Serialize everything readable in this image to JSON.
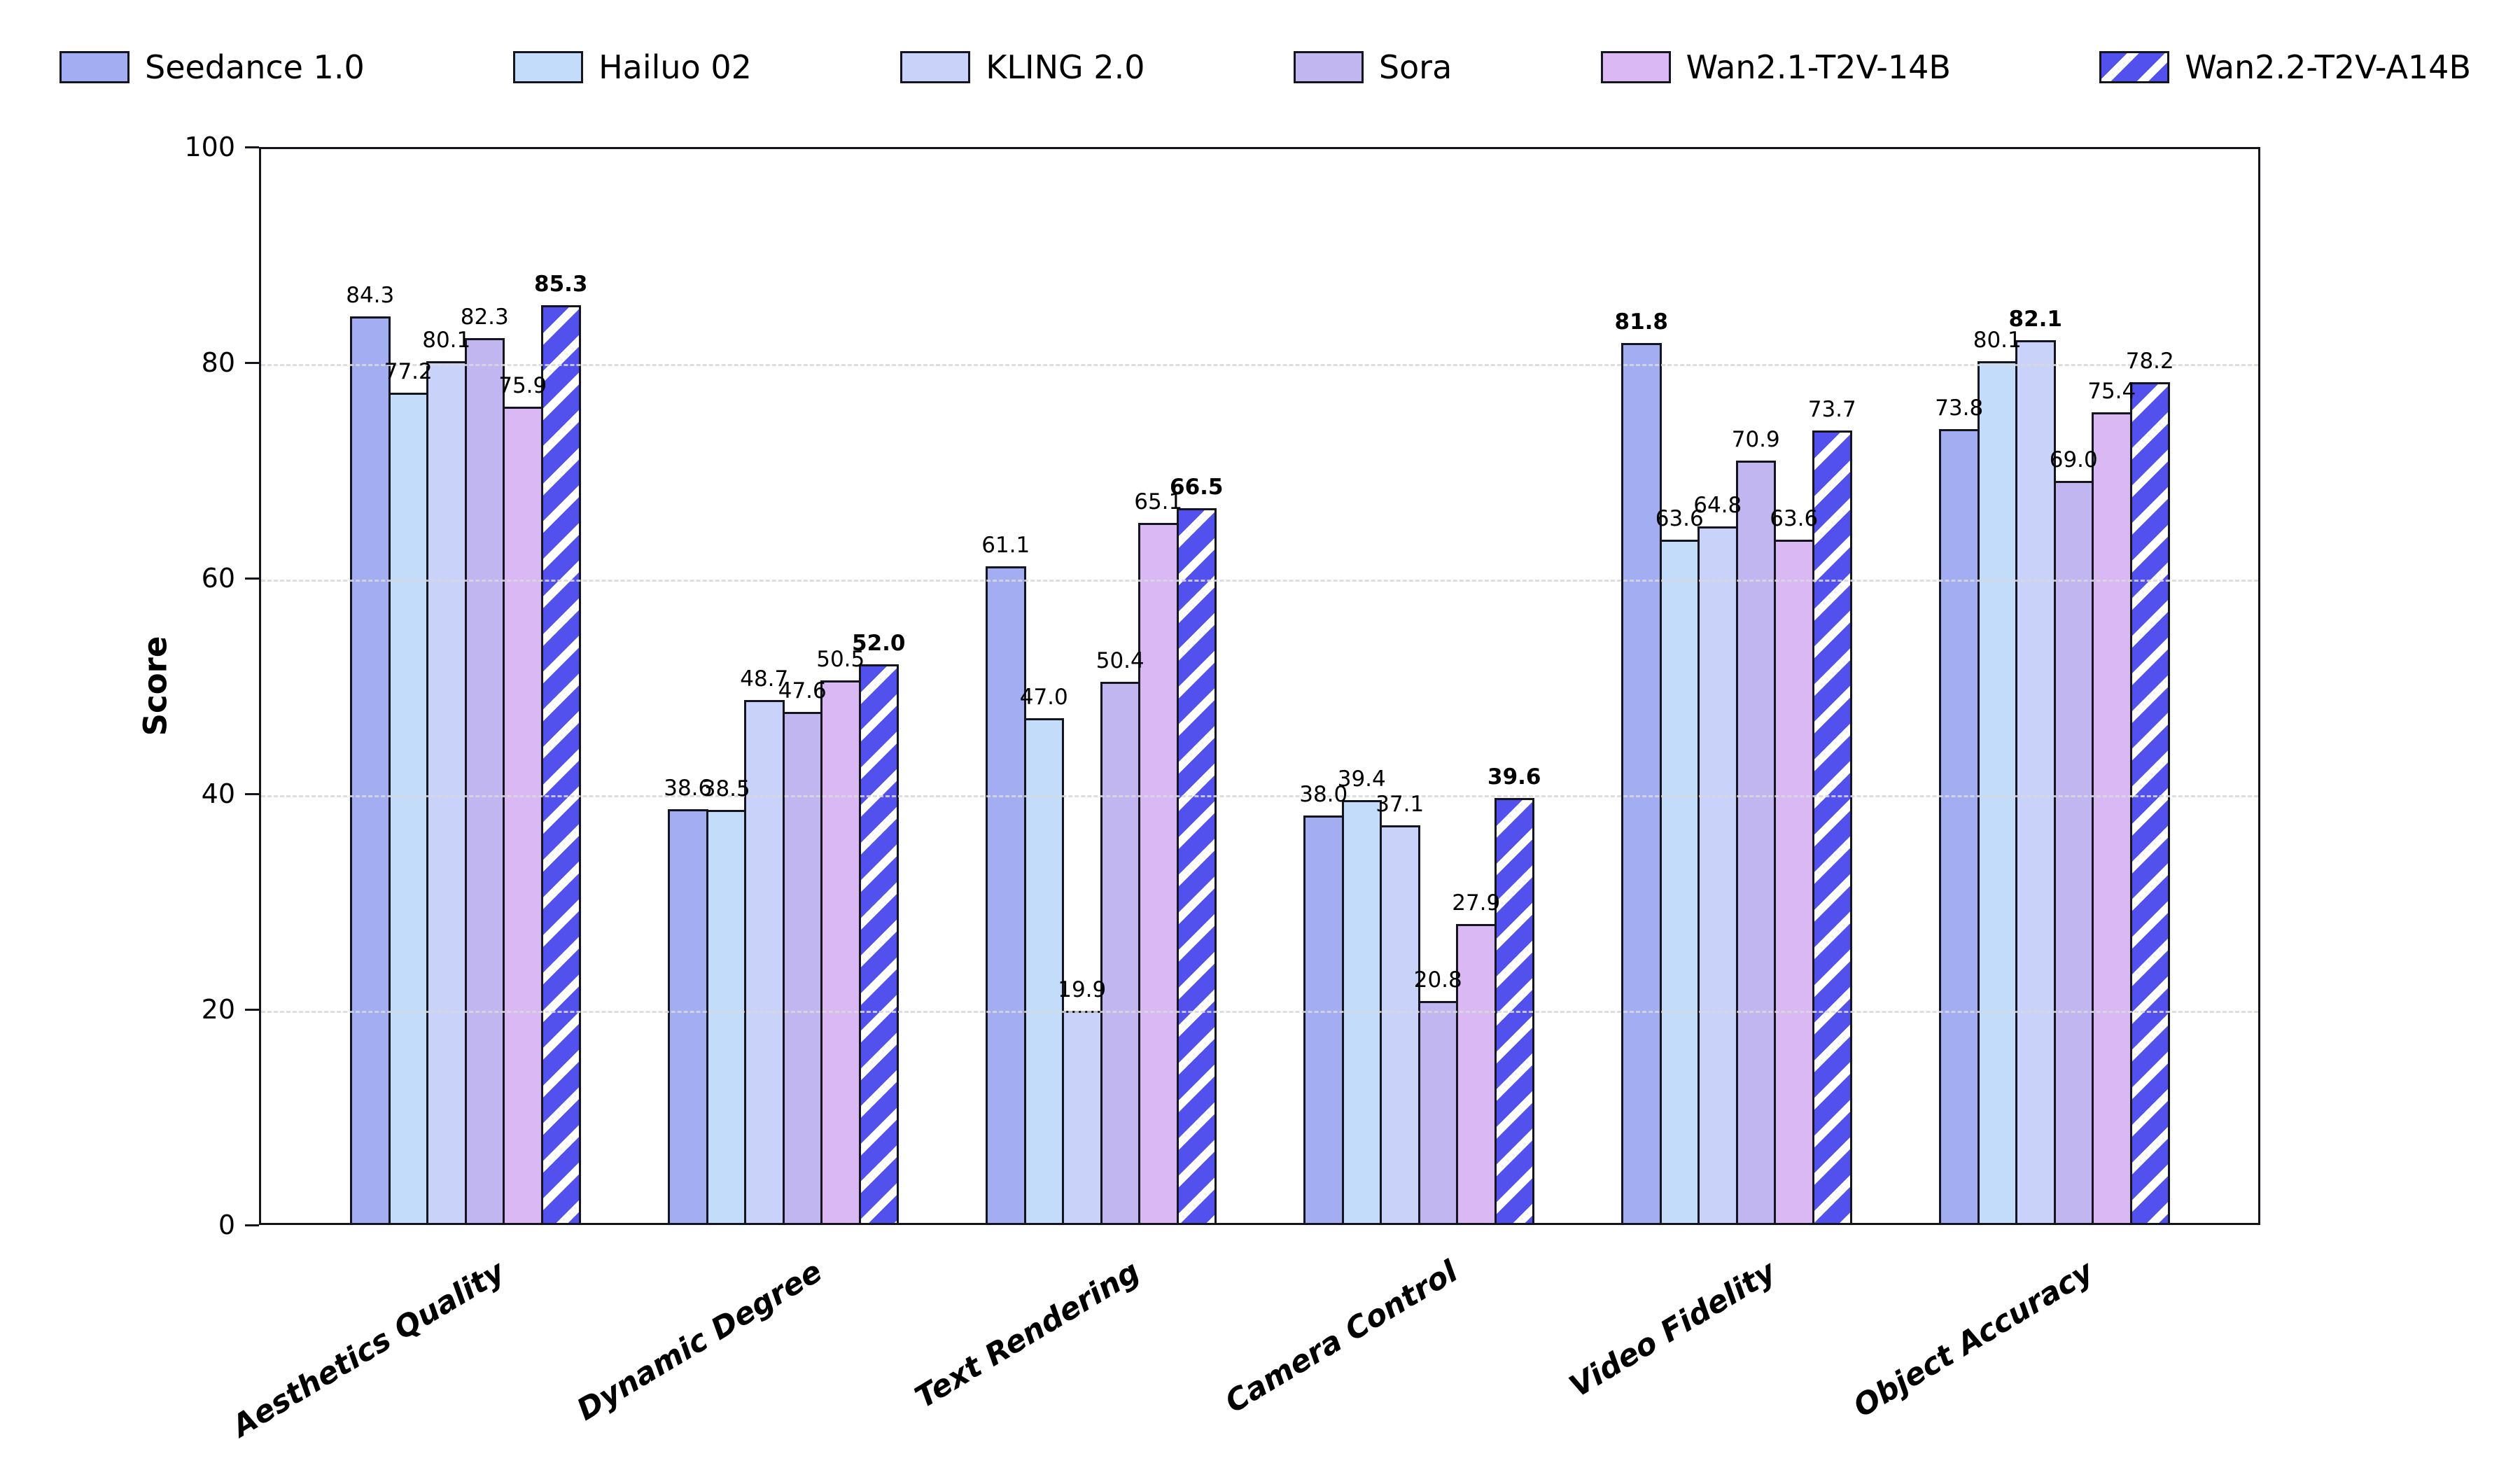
{
  "ylabel": "Score",
  "chart_data": {
    "type": "bar",
    "title": "",
    "xlabel": "",
    "ylabel": "Score",
    "ylim": [
      0,
      100
    ],
    "yticks": [
      0,
      20,
      40,
      60,
      80,
      100
    ],
    "grid": "horizontal-dashed",
    "legend_position": "top",
    "bold_rule": "highest value in each category is bold",
    "categories": [
      "Aesthetics Quality",
      "Dynamic Degree",
      "Text Rendering",
      "Camera Control",
      "Video Fidelity",
      "Object Accuracy"
    ],
    "series": [
      {
        "name": "Seedance 1.0",
        "color": "#a2adf2",
        "hatch": false,
        "values": [
          84.3,
          38.6,
          61.1,
          38.0,
          81.8,
          73.8
        ]
      },
      {
        "name": "Hailuo 02",
        "color": "#c2dcf9",
        "hatch": false,
        "values": [
          77.2,
          38.5,
          47.0,
          39.4,
          63.6,
          80.1
        ]
      },
      {
        "name": "KLING 2.0",
        "color": "#c9d2f8",
        "hatch": false,
        "values": [
          80.1,
          48.7,
          19.9,
          37.1,
          64.8,
          82.1
        ]
      },
      {
        "name": "Sora",
        "color": "#c2b6f0",
        "hatch": false,
        "values": [
          82.3,
          47.6,
          50.4,
          20.8,
          70.9,
          69.0
        ]
      },
      {
        "name": "Wan2.1-T2V-14B",
        "color": "#d9b8f4",
        "hatch": false,
        "values": [
          75.9,
          50.5,
          65.1,
          27.9,
          63.6,
          75.4
        ]
      },
      {
        "name": "Wan2.2-T2V-A14B",
        "color": "#5351ee",
        "hatch": true,
        "values": [
          85.3,
          52.0,
          66.5,
          39.6,
          73.7,
          78.2
        ]
      }
    ],
    "hatch_style": {
      "pattern": "diagonal-forward-slash",
      "stripe_color": "#ffffff"
    },
    "edge_color": "#15151f",
    "grid_color": "#d9d9d9"
  }
}
